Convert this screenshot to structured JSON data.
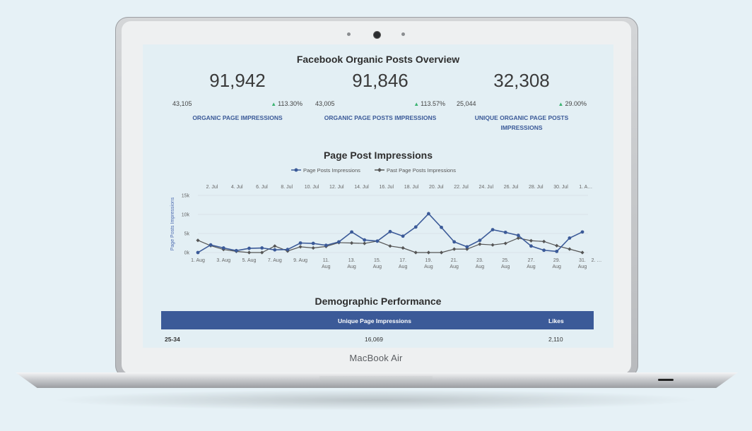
{
  "device": {
    "brand_label": "MacBook Air"
  },
  "dashboard": {
    "title": "Facebook Organic Posts Overview",
    "kpis": [
      {
        "value": "91,942",
        "previous": "43,105",
        "change": "113.30%",
        "label": "ORGANIC PAGE IMPRESSIONS"
      },
      {
        "value": "91,846",
        "previous": "43,005",
        "change": "113.57%",
        "label": "ORGANIC PAGE POSTS IMPRESSIONS"
      },
      {
        "value": "32,308",
        "previous": "25,044",
        "change": "29.00%",
        "label": "UNIQUE ORGANIC PAGE POSTS IMPRESSIONS"
      }
    ],
    "change_icon": "triangle-up-icon",
    "colors": {
      "accent": "#3b5a98",
      "positive": "#3cb371",
      "series_current": "#3b5a98",
      "series_past": "#555555"
    }
  },
  "chart_data": {
    "type": "line",
    "title": "Page Post Impressions",
    "ylabel": "Page Posts Impressions",
    "ylim": [
      0,
      15000
    ],
    "yticks": [
      "15k",
      "10k",
      "5k",
      "0k"
    ],
    "legend_position": "top",
    "grid": true,
    "x_bottom_labels": [
      [
        "1. Aug",
        ""
      ],
      [
        "3. Aug",
        ""
      ],
      [
        "5. Aug",
        ""
      ],
      [
        "7. Aug",
        ""
      ],
      [
        "9. Aug",
        ""
      ],
      [
        "11.",
        "Aug"
      ],
      [
        "13.",
        "Aug"
      ],
      [
        "15.",
        "Aug"
      ],
      [
        "17.",
        "Aug"
      ],
      [
        "19.",
        "Aug"
      ],
      [
        "21.",
        "Aug"
      ],
      [
        "23.",
        "Aug"
      ],
      [
        "25.",
        "Aug"
      ],
      [
        "27.",
        "Aug"
      ],
      [
        "29.",
        "Aug"
      ],
      [
        "31.",
        "Aug"
      ],
      [
        "2. …",
        ""
      ]
    ],
    "x_top_labels": [
      "2. Jul",
      "4. Jul",
      "6. Jul",
      "8. Jul",
      "10. Jul",
      "12. Jul",
      "14. Jul",
      "16. Jul",
      "18. Jul",
      "20. Jul",
      "22. Jul",
      "24. Jul",
      "26. Jul",
      "28. Jul",
      "30. Jul",
      "1. A…"
    ],
    "series": [
      {
        "name": "Page Posts Impressions",
        "values": [
          0,
          2000,
          1200,
          500,
          1100,
          1200,
          700,
          800,
          2500,
          2400,
          1900,
          2800,
          5400,
          3300,
          3000,
          5500,
          4300,
          6700,
          10200,
          6600,
          2800,
          1500,
          3200,
          6000,
          5300,
          4500,
          1700,
          600,
          300,
          3800,
          5400
        ]
      },
      {
        "name": "Past Page Posts Impressions",
        "values": [
          3200,
          1800,
          800,
          300,
          0,
          0,
          1700,
          400,
          1500,
          1200,
          1600,
          2600,
          2500,
          2400,
          3000,
          1700,
          1200,
          0,
          0,
          0,
          900,
          900,
          2200,
          2000,
          2400,
          3800,
          3100,
          2900,
          1800,
          900,
          0
        ]
      }
    ]
  },
  "demographics": {
    "title": "Demographic Performance",
    "columns": [
      "",
      "Unique Page Impressions",
      "Likes"
    ],
    "rows": [
      [
        "25-34",
        "16,069",
        "2,110"
      ]
    ]
  }
}
